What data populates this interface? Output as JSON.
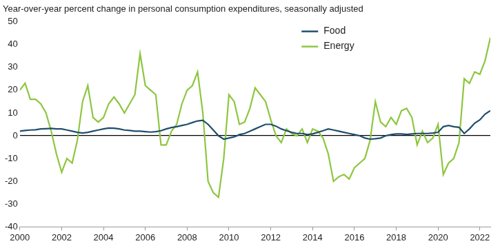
{
  "chart_data": {
    "type": "line",
    "y_label": "Year-over-year percent change in personal consumption expenditures, seasonally adjusted",
    "x": [
      2000,
      2000.25,
      2000.5,
      2000.75,
      2001,
      2001.25,
      2001.5,
      2001.75,
      2002,
      2002.25,
      2002.5,
      2002.75,
      2003,
      2003.25,
      2003.5,
      2003.75,
      2004,
      2004.25,
      2004.5,
      2004.75,
      2005,
      2005.25,
      2005.5,
      2005.75,
      2006,
      2006.25,
      2006.5,
      2006.75,
      2007,
      2007.25,
      2007.5,
      2007.75,
      2008,
      2008.25,
      2008.5,
      2008.75,
      2009,
      2009.25,
      2009.5,
      2009.75,
      2010,
      2010.25,
      2010.5,
      2010.75,
      2011,
      2011.25,
      2011.5,
      2011.75,
      2012,
      2012.25,
      2012.5,
      2012.75,
      2013,
      2013.25,
      2013.5,
      2013.75,
      2014,
      2014.25,
      2014.5,
      2014.75,
      2015,
      2015.25,
      2015.5,
      2015.75,
      2016,
      2016.25,
      2016.5,
      2016.75,
      2017,
      2017.25,
      2017.5,
      2017.75,
      2018,
      2018.25,
      2018.5,
      2018.75,
      2019,
      2019.25,
      2019.5,
      2019.75,
      2020,
      2020.25,
      2020.5,
      2020.75,
      2021,
      2021.25,
      2021.5,
      2021.75,
      2022,
      2022.25,
      2022.5
    ],
    "series": [
      {
        "name": "Food",
        "color": "#1f4e6e",
        "values": [
          2,
          2.3,
          2.5,
          2.6,
          3,
          3.1,
          3.2,
          3,
          3,
          2.5,
          2,
          1.5,
          1.2,
          1.5,
          2,
          2.5,
          3,
          3.4,
          3.3,
          3,
          2.5,
          2.3,
          2,
          2,
          1.8,
          1.6,
          1.8,
          2.2,
          3,
          3.6,
          4,
          4.5,
          5,
          5.8,
          6.5,
          6.8,
          5,
          2.5,
          0,
          -1.5,
          -1,
          -0.5,
          0.5,
          1,
          2,
          3,
          4,
          5,
          5,
          4.2,
          3,
          2.2,
          1.5,
          1,
          1,
          0.5,
          0.8,
          1.5,
          2.2,
          3,
          2.5,
          2,
          1.5,
          1,
          0.5,
          0,
          -1,
          -1.5,
          -1.3,
          -1,
          0,
          0.5,
          0.8,
          0.8,
          0.6,
          0.8,
          1,
          1,
          1,
          1.2,
          1.5,
          4,
          4.5,
          4,
          3.7,
          1,
          3,
          5.5,
          7,
          9.5,
          11
        ]
      },
      {
        "name": "Energy",
        "color": "#8dc63f",
        "values": [
          20,
          23,
          16,
          16,
          14,
          10,
          2,
          -8,
          -16,
          -10,
          -12,
          -2,
          15,
          22,
          8,
          6,
          8,
          14,
          17,
          14,
          10,
          14,
          18,
          36,
          22,
          20,
          18,
          -4,
          -4,
          2,
          5,
          14,
          20,
          22,
          28,
          10,
          -20,
          -25,
          -27,
          -10,
          18,
          15,
          5,
          6,
          12,
          21,
          18,
          15,
          7,
          0,
          -3,
          3,
          1,
          0,
          3,
          -3,
          3,
          2,
          -1,
          -8,
          -20,
          -18,
          -17,
          -19,
          -14,
          -12,
          -10,
          -2,
          15,
          6,
          4,
          8,
          5,
          11,
          12,
          8,
          -4,
          2,
          -3,
          -1,
          5,
          -17,
          -12,
          -10,
          -3,
          25,
          23,
          28,
          27,
          33,
          43
        ]
      }
    ],
    "xlim": [
      2000,
      2022.5
    ],
    "xticks": [
      2000,
      2002,
      2004,
      2006,
      2008,
      2010,
      2012,
      2014,
      2016,
      2018,
      2020,
      2022
    ],
    "ylim": [
      -40,
      50
    ],
    "yticks": [
      -40,
      -30,
      -20,
      -10,
      0,
      10,
      20,
      30,
      40,
      50
    ],
    "grid": false,
    "legend": "upper right"
  }
}
